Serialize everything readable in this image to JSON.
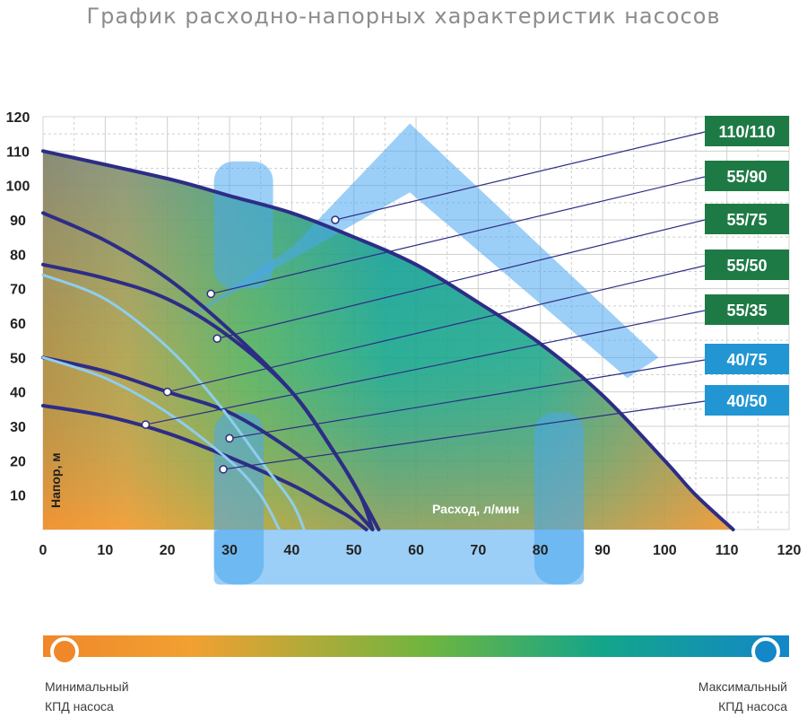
{
  "title": "График расходно-напорных характеристик насосов",
  "chart_data": {
    "type": "line",
    "title": "График расходно-напорных характеристик насосов",
    "xlabel": "Расход, л/мин",
    "ylabel": "Напор, м",
    "xlim": [
      0,
      120
    ],
    "ylim": [
      0,
      120
    ],
    "x_ticks": [
      "0",
      "10",
      "20",
      "30",
      "40",
      "50",
      "60",
      "70",
      "80",
      "90",
      "100",
      "110",
      "120"
    ],
    "y_ticks": [
      "10",
      "20",
      "30",
      "40",
      "50",
      "60",
      "70",
      "80",
      "90",
      "100",
      "110",
      "120"
    ],
    "grid": true,
    "series": [
      {
        "name": "110/110",
        "color": "#1e7a45",
        "x": [
          0,
          20,
          30,
          40,
          50,
          60,
          70,
          80,
          90,
          100,
          105,
          111
        ],
        "y": [
          110,
          102,
          97,
          92,
          85,
          77,
          66,
          54,
          39,
          20,
          10,
          0
        ]
      },
      {
        "name": "55/90",
        "color": "#1e7a45",
        "x": [
          0,
          10,
          20,
          30,
          40,
          47,
          51,
          54
        ],
        "y": [
          92,
          84,
          73,
          58,
          40,
          22,
          10,
          0
        ]
      },
      {
        "name": "55/75",
        "color": "#1e7a45",
        "x": [
          0,
          10,
          20,
          30,
          40,
          47,
          51,
          53
        ],
        "y": [
          77,
          73,
          67,
          56,
          40,
          22,
          10,
          0
        ]
      },
      {
        "name": "55/50",
        "color": "#1e7a45",
        "x": [
          0,
          10,
          20,
          30,
          40,
          46,
          50,
          53
        ],
        "y": [
          50,
          46,
          40,
          34,
          23,
          14,
          6,
          0
        ]
      },
      {
        "name": "55/35",
        "color": "#1e7a45",
        "x": [
          0,
          10,
          20,
          30,
          40,
          45,
          49,
          52
        ],
        "y": [
          36,
          33,
          28,
          21,
          13,
          8,
          4,
          0
        ]
      },
      {
        "name": "40/75",
        "color": "#2196d3",
        "x": [
          0,
          10,
          20,
          28,
          35,
          40,
          42
        ],
        "y": [
          74,
          67,
          53,
          37,
          20,
          8,
          0
        ]
      },
      {
        "name": "40/50",
        "color": "#2196d3",
        "x": [
          0,
          10,
          20,
          30,
          35,
          38
        ],
        "y": [
          50,
          44,
          34,
          20,
          10,
          0
        ]
      }
    ],
    "labels": [
      "110/110",
      "55/90",
      "55/75",
      "55/50",
      "55/35",
      "40/75",
      "40/50"
    ],
    "legend": {
      "min_label_line1": "Минимальный",
      "min_label_line2": "КПД насоса",
      "max_label_line1": "Максимальный",
      "max_label_line2": "КПД насоса"
    },
    "colors": {
      "min_efficiency": "#f0882a",
      "max_efficiency": "#1387c8",
      "curve": "#2d2d86",
      "label_green": "#1e7a45",
      "label_blue": "#2196d3"
    }
  }
}
